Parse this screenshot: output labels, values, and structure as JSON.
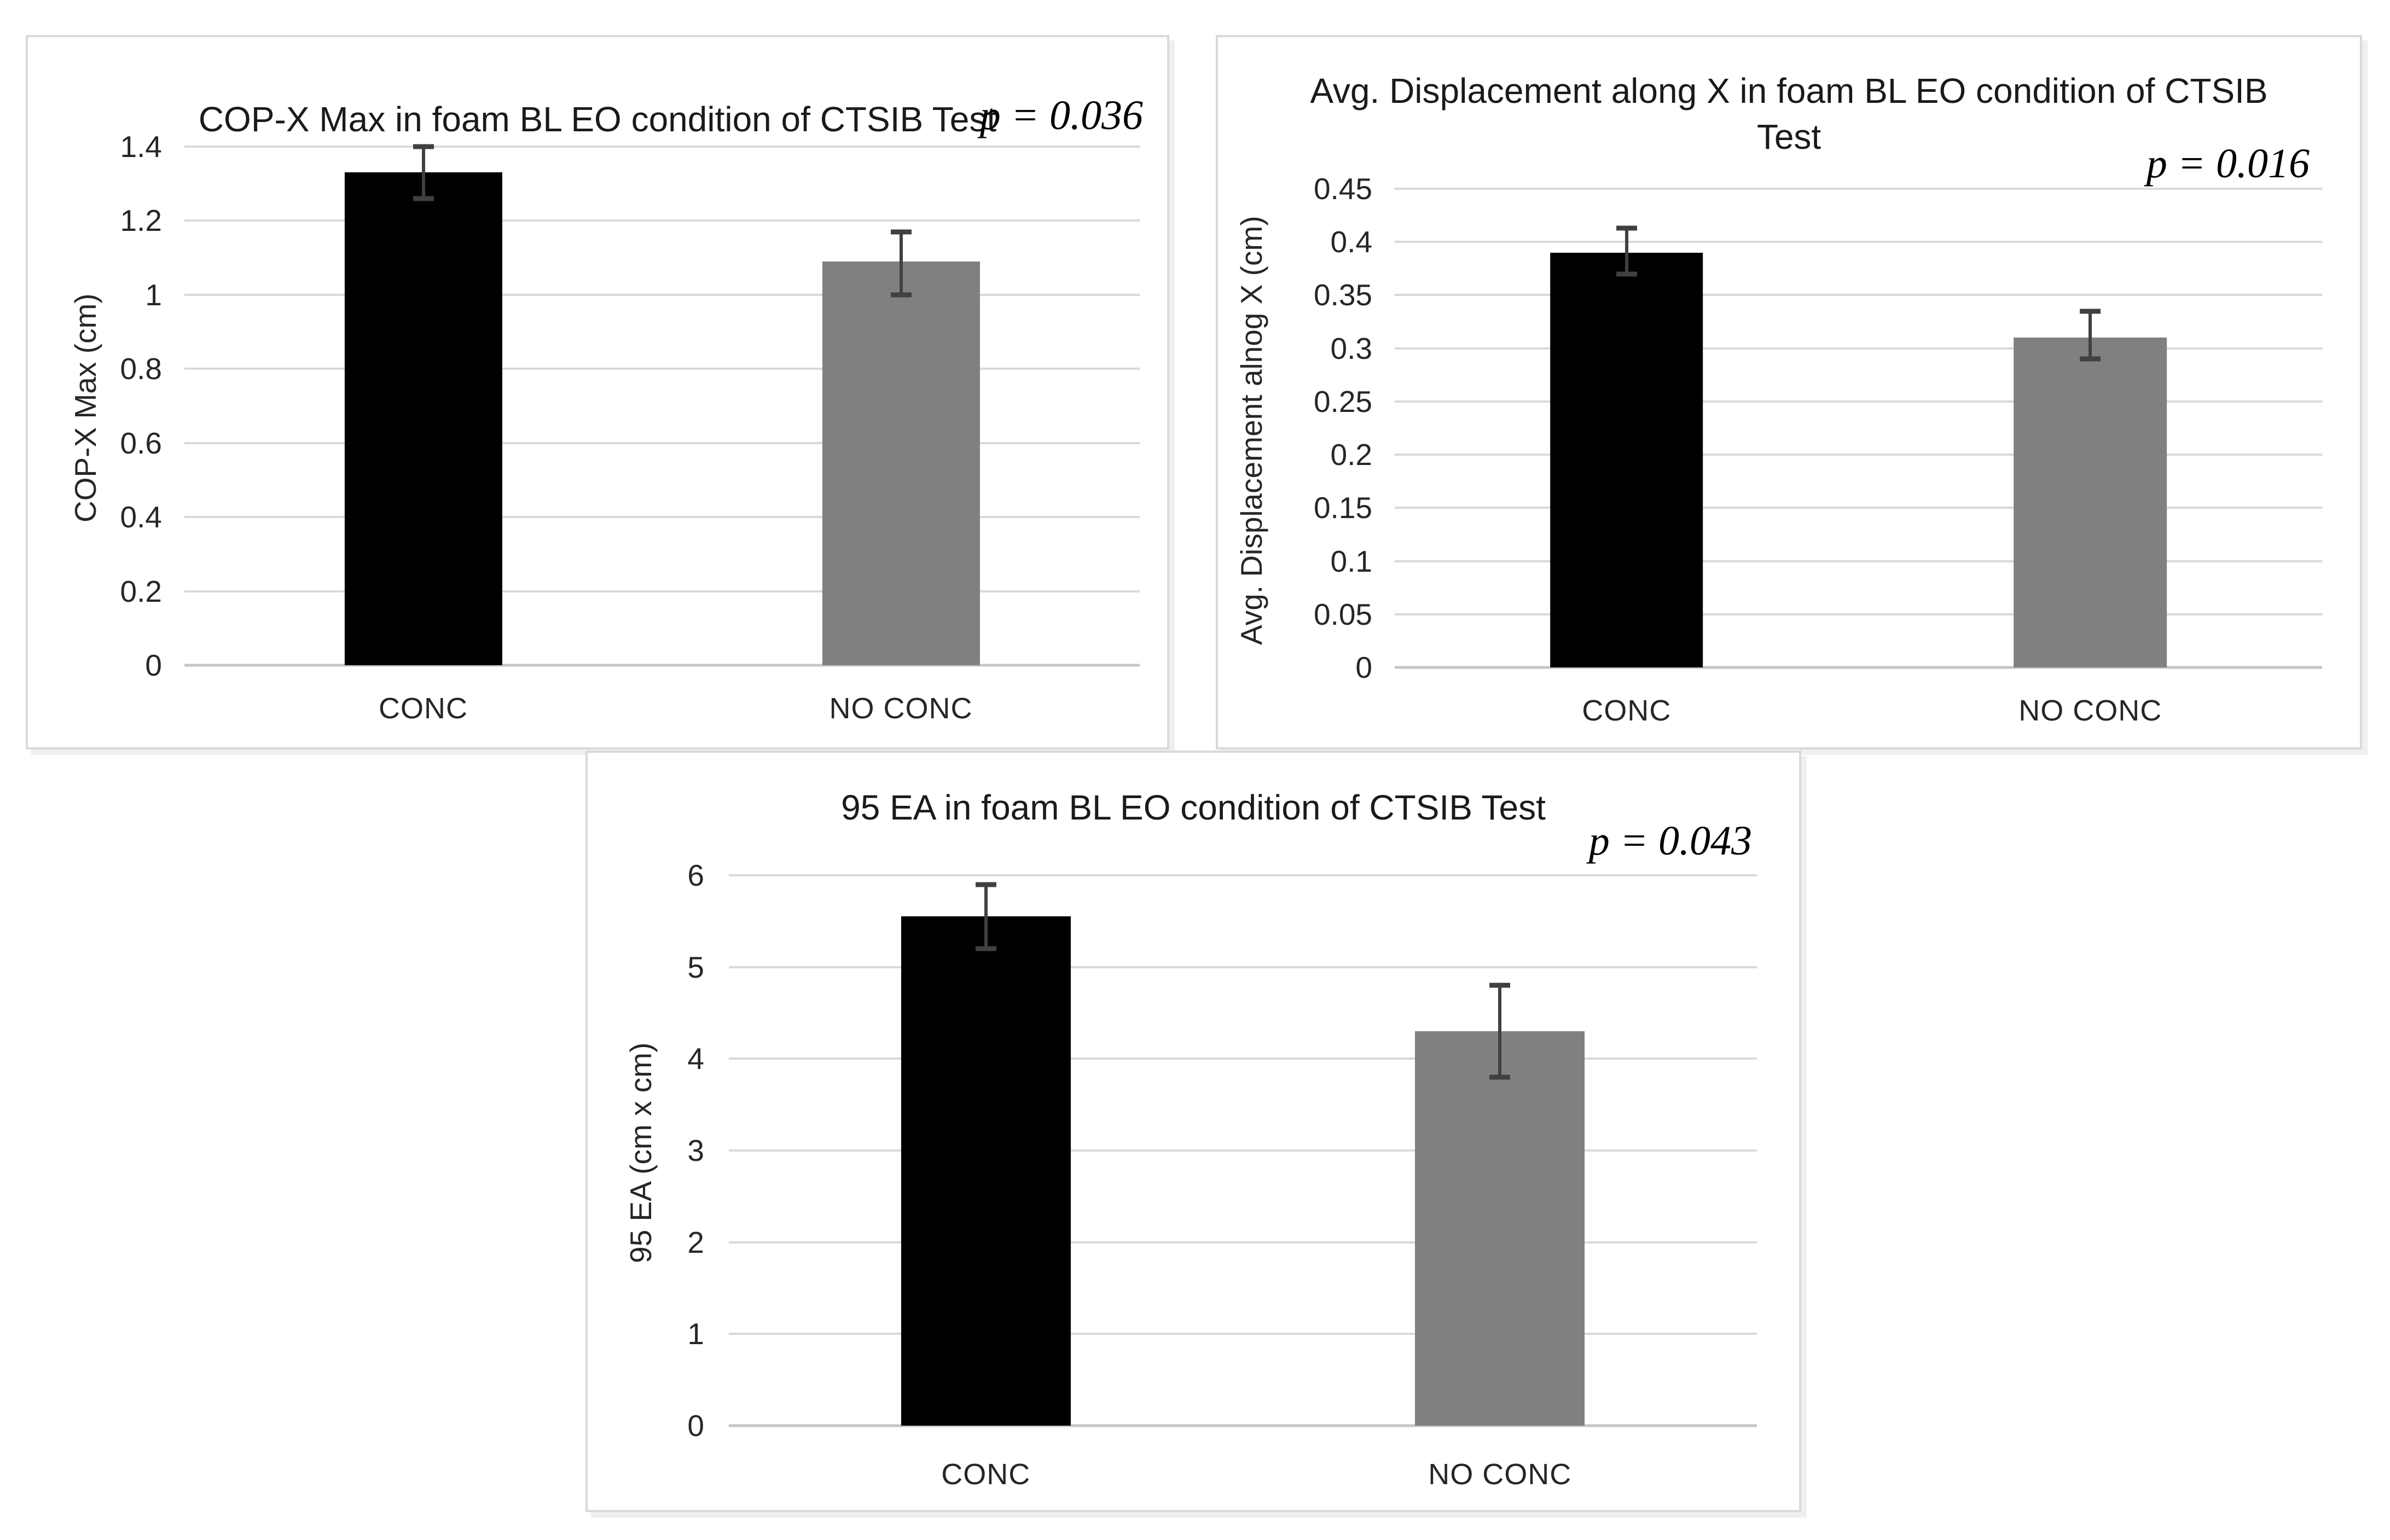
{
  "figure": {
    "description": "Three bar charts comparing CONC vs NO CONC groups in the foam BL EO condition of the CTSIB Test",
    "background": "#ffffff"
  },
  "colors": {
    "bar_conc": "#000000",
    "bar_no_conc": "#808080",
    "gridline": "#d9d9d9",
    "axis_line": "#c6c6c6",
    "error_bar": "#404040",
    "panel_border": "#d9d9d9",
    "title_text": "#1a1a1a",
    "tick_text": "#262626"
  },
  "chart_data": [
    {
      "type": "bar",
      "title": "COP-X Max in foam BL EO condition of CTSIB Test",
      "p_label": "p = 0.036",
      "xlabel": "",
      "ylabel": "COP-X Max (cm)",
      "ylim": [
        0,
        1.4
      ],
      "y_tick_step": 0.2,
      "grid": true,
      "legend": false,
      "categories": [
        "CONC",
        "NO CONC"
      ],
      "values": [
        1.33,
        1.09
      ],
      "error_low": [
        1.26,
        1.0
      ],
      "error_high": [
        1.4,
        1.17
      ],
      "bar_colors": [
        "#000000",
        "#808080"
      ],
      "y_ticks": [
        {
          "value": 1.4,
          "label": "1.4"
        },
        {
          "value": 1.2,
          "label": "1.2"
        },
        {
          "value": 1.0,
          "label": "1"
        },
        {
          "value": 0.8,
          "label": "0.8"
        },
        {
          "value": 0.6,
          "label": "0.6"
        },
        {
          "value": 0.4,
          "label": "0.4"
        },
        {
          "value": 0.2,
          "label": "0.2"
        },
        {
          "value": 0,
          "label": "0"
        }
      ]
    },
    {
      "type": "bar",
      "title": "Avg. Displacement along X in foam BL EO condition of CTSIB Test",
      "p_label": "p = 0.016",
      "xlabel": "",
      "ylabel": "Avg. Displacement alnog X (cm)",
      "ylim": [
        0,
        0.45
      ],
      "y_tick_step": 0.05,
      "grid": true,
      "legend": false,
      "categories": [
        "CONC",
        "NO CONC"
      ],
      "values": [
        0.39,
        0.31
      ],
      "error_low": [
        0.37,
        0.29
      ],
      "error_high": [
        0.413,
        0.335
      ],
      "bar_colors": [
        "#000000",
        "#808080"
      ],
      "y_ticks": [
        {
          "value": 0.45,
          "label": "0.45"
        },
        {
          "value": 0.4,
          "label": "0.4"
        },
        {
          "value": 0.35,
          "label": "0.35"
        },
        {
          "value": 0.3,
          "label": "0.3"
        },
        {
          "value": 0.25,
          "label": "0.25"
        },
        {
          "value": 0.2,
          "label": "0.2"
        },
        {
          "value": 0.15,
          "label": "0.15"
        },
        {
          "value": 0.1,
          "label": "0.1"
        },
        {
          "value": 0.05,
          "label": "0.05"
        },
        {
          "value": 0,
          "label": "0"
        }
      ]
    },
    {
      "type": "bar",
      "title": "95 EA in foam BL EO condition of CTSIB Test",
      "p_label": "p = 0.043",
      "xlabel": "",
      "ylabel": "95 EA (cm x cm)",
      "ylim": [
        0,
        6
      ],
      "y_tick_step": 1,
      "grid": true,
      "legend": false,
      "categories": [
        "CONC",
        "NO CONC"
      ],
      "values": [
        5.55,
        4.3
      ],
      "error_low": [
        5.2,
        3.8
      ],
      "error_high": [
        5.9,
        4.8
      ],
      "bar_colors": [
        "#000000",
        "#808080"
      ],
      "y_ticks": [
        {
          "value": 6,
          "label": "6"
        },
        {
          "value": 5,
          "label": "5"
        },
        {
          "value": 4,
          "label": "4"
        },
        {
          "value": 3,
          "label": "3"
        },
        {
          "value": 2,
          "label": "2"
        },
        {
          "value": 1,
          "label": "1"
        },
        {
          "value": 0,
          "label": "0"
        }
      ]
    }
  ]
}
